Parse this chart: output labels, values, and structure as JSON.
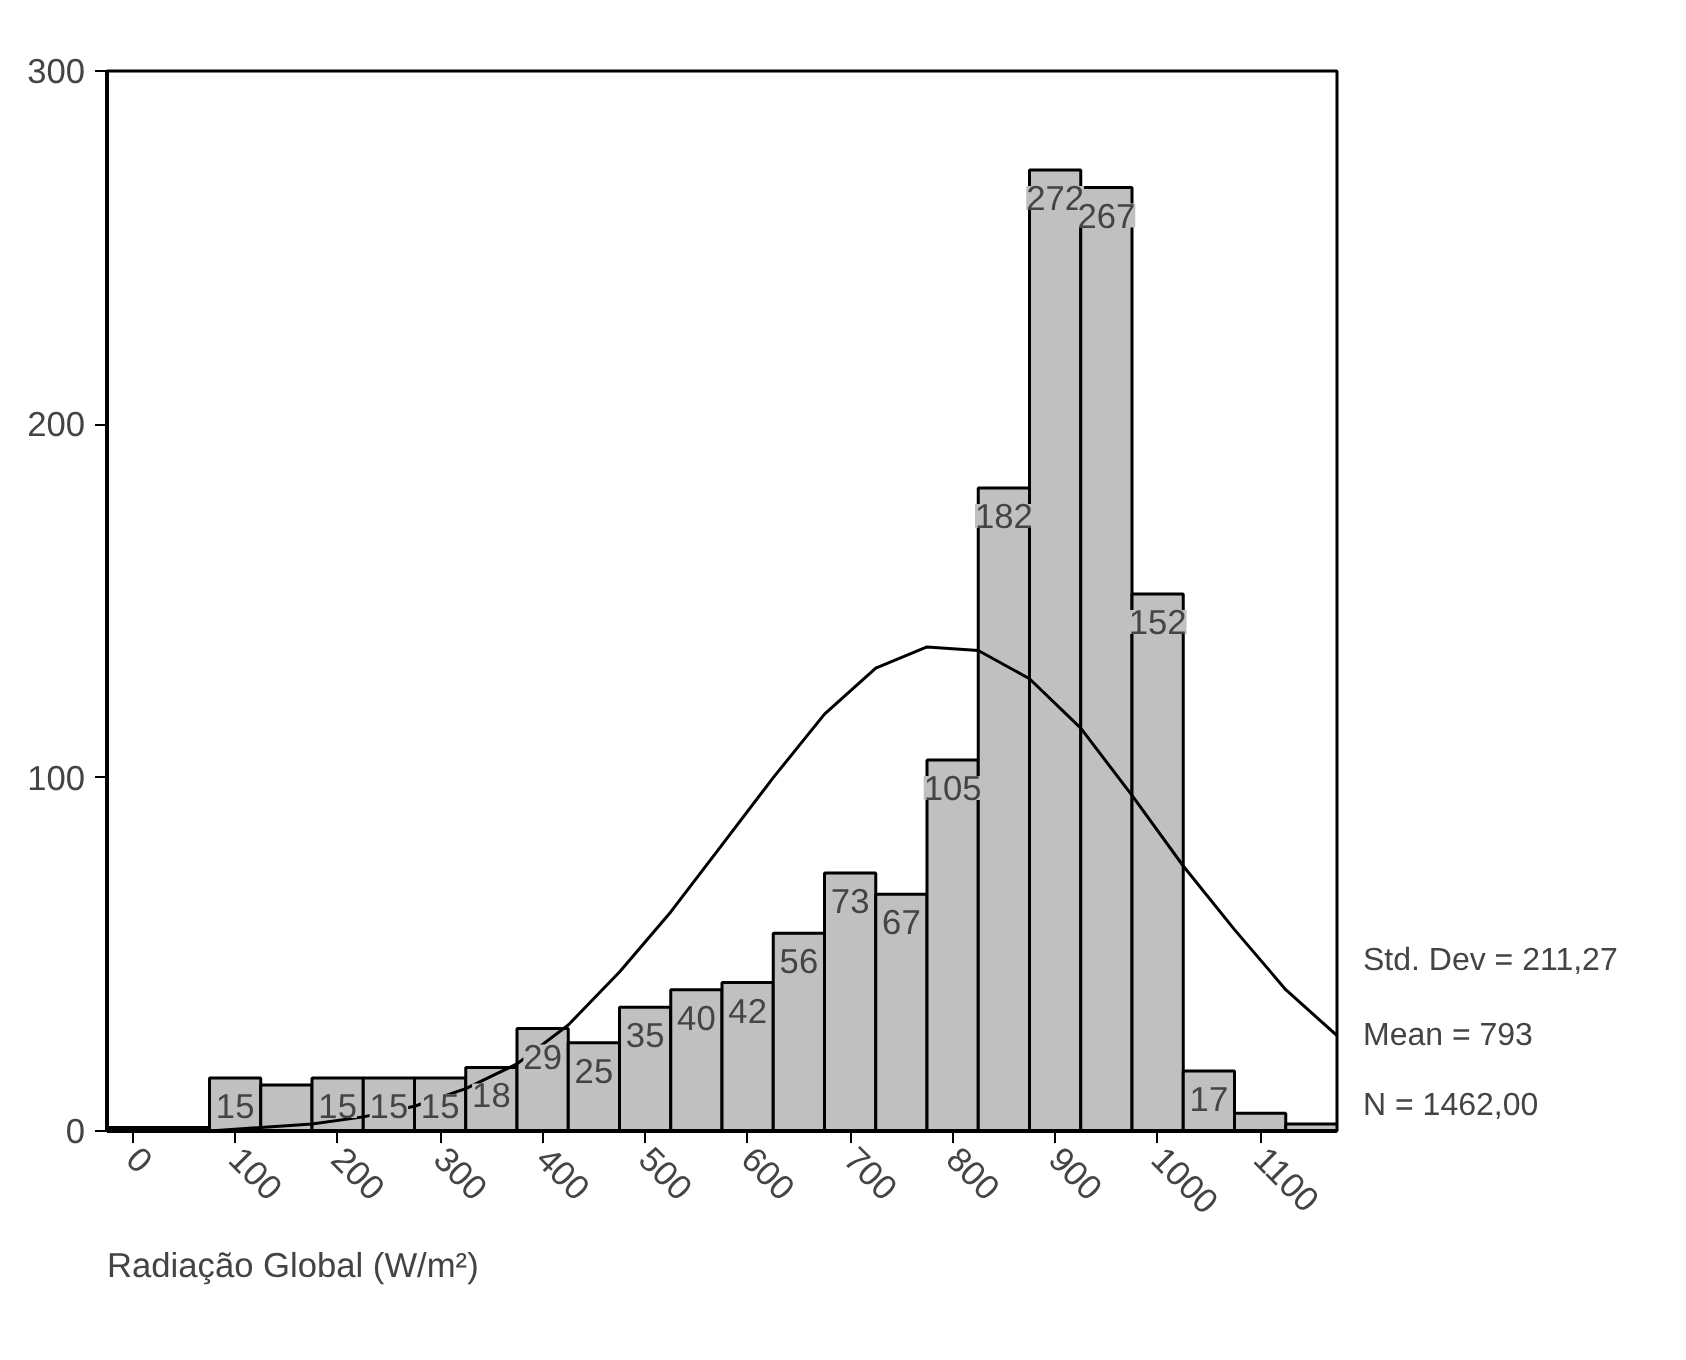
{
  "chart_data": {
    "type": "histogram",
    "xlabel": "Radiação Global (W/m²)",
    "bins": [
      -25,
      25,
      75,
      125,
      175,
      225,
      275,
      325,
      375,
      425,
      475,
      525,
      575,
      625,
      675,
      725,
      775,
      825,
      875,
      925,
      975,
      1025,
      1075,
      1125,
      1175
    ],
    "values": [
      1,
      1,
      15,
      13,
      15,
      15,
      15,
      18,
      29,
      25,
      35,
      40,
      42,
      56,
      73,
      67,
      105,
      182,
      272,
      267,
      152,
      17,
      5,
      2
    ],
    "value_labels": [
      null,
      null,
      "15",
      null,
      "15",
      "15",
      "15",
      "18",
      "29",
      "25",
      "35",
      "40",
      "42",
      "56",
      "73",
      "67",
      "105",
      "182",
      "272",
      "267",
      "152",
      "17",
      null,
      null
    ],
    "color": "#c0c0c0",
    "series": [
      {
        "type": "line",
        "color": "#000000",
        "x": [
          -25,
          25,
          75,
          125,
          175,
          225,
          275,
          325,
          375,
          425,
          475,
          525,
          575,
          625,
          675,
          725,
          775,
          825,
          875,
          925,
          975,
          1025,
          1075,
          1125,
          1175
        ],
        "values": [
          0,
          0,
          0,
          1,
          2,
          4,
          7,
          12,
          19,
          30,
          45,
          62,
          81,
          100,
          118,
          131,
          137,
          136,
          128,
          114,
          95,
          75,
          57,
          40,
          27
        ]
      }
    ],
    "xlim": [
      -25,
      1175
    ],
    "xticks": [
      0,
      100,
      200,
      300,
      400,
      500,
      600,
      700,
      800,
      900,
      1000,
      1100
    ],
    "ylim": [
      0,
      300
    ],
    "yticks": [
      0,
      100,
      200,
      300
    ],
    "grid": false,
    "annotations": [
      "Std. Dev = 211,27",
      "Mean = 793",
      "N = 1462,00"
    ]
  }
}
